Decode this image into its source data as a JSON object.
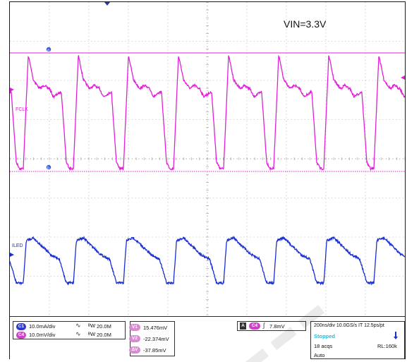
{
  "annotation": {
    "vin_label": "VIN=3.3V"
  },
  "channels": {
    "ch2": {
      "label": "FCLK",
      "color": "#e020d8"
    },
    "ch1": {
      "label": "ILED",
      "color": "#1a2fd0"
    }
  },
  "cursors": {
    "a_label": "a",
    "b_label": "b"
  },
  "status": {
    "row1": {
      "badge": "C1",
      "scale": "10.0mA/div",
      "bw": "20.0M"
    },
    "row2": {
      "badge": "C4",
      "scale": "10.0mV/div",
      "bw": "20.0M"
    },
    "cursor_v1": {
      "badge": "V1",
      "value": "15.476mV"
    },
    "cursor_v2": {
      "badge": "V2",
      "value": "-22.374mV"
    },
    "cursor_dv": {
      "badge": "ΔV",
      "value": "-37.85mV"
    },
    "trigger": {
      "mode_badge": "A",
      "ch_badge": "C4",
      "level": "7.8mV"
    },
    "timebase": "200ns/div  10.0GS/s  IT  12.5ps/pt",
    "acq_state": "Stopped",
    "acq_count": "18 acqs",
    "record_length": "RL:160k",
    "trigger_mode": "Auto"
  },
  "colors": {
    "ch_fclk": "#e020d8",
    "ch_iled": "#1a2fd0",
    "grid": "#9a9a9a",
    "stopped": "#2ab8d8"
  }
}
